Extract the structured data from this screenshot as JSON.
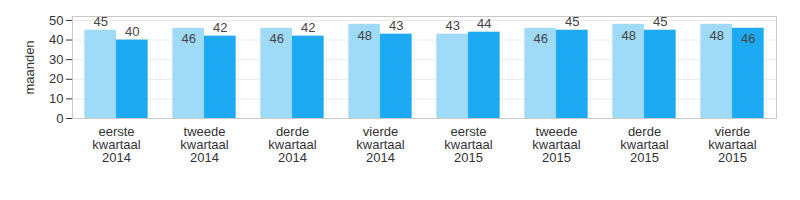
{
  "chart_data": {
    "type": "bar",
    "y_label": "maanden",
    "categories": [
      "eerste\nkwartaal\n2014",
      "tweede\nkwartaal\n2014",
      "derde\nkwartaal\n2014",
      "vierde\nkwartaal\n2014",
      "eerste\nkwartaal\n2015",
      "tweede\nkwartaal\n2015",
      "derde\nkwartaal\n2015",
      "vierde\nkwartaal\n2015"
    ],
    "series": [
      {
        "color": "#9fdaf7",
        "values": [
          45,
          46,
          46,
          48,
          43,
          46,
          48,
          48
        ]
      },
      {
        "color": "#1eaaf2",
        "values": [
          40,
          42,
          42,
          43,
          44,
          45,
          45,
          46
        ]
      }
    ],
    "ylim": [
      0,
      52
    ],
    "yticks": [
      0,
      10,
      20,
      30,
      40,
      50
    ],
    "grid": true,
    "data_labels": true
  }
}
